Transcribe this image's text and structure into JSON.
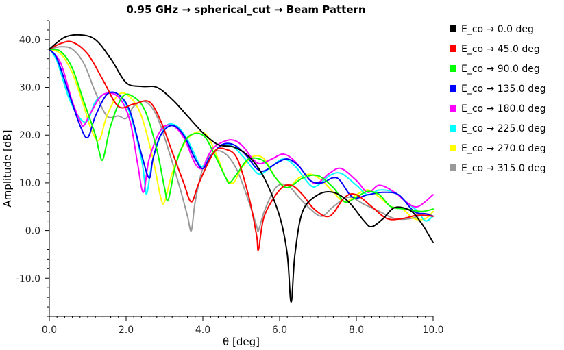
{
  "chart_data": {
    "type": "line",
    "title": "0.95 GHz → spherical_cut → Beam Pattern",
    "xlabel": "θ [deg]",
    "ylabel": "Amplitude [dB]",
    "xlim": [
      0,
      10
    ],
    "ylim": [
      -18,
      44
    ],
    "xticks": [
      "0.0",
      "2.0",
      "4.0",
      "6.0",
      "8.0",
      "10.0"
    ],
    "yticks": [
      "-10.0",
      "0.0",
      "10.0",
      "20.0",
      "30.0",
      "40.0"
    ],
    "legend_position": "right",
    "grid": false,
    "series": [
      {
        "name": "E_co → 0.0 deg",
        "color": "#000000",
        "x": [
          0,
          0.4,
          0.8,
          1.2,
          1.6,
          2.0,
          2.4,
          2.8,
          3.2,
          3.6,
          4.0,
          4.4,
          4.8,
          5.2,
          5.6,
          6.0,
          6.2,
          6.3,
          6.4,
          6.6,
          7.0,
          7.4,
          7.8,
          8.2,
          8.4,
          8.7,
          9.0,
          9.4,
          9.7,
          10.0
        ],
        "y": [
          38,
          40.5,
          41,
          40,
          36,
          31,
          30.2,
          30,
          27.5,
          24,
          20.5,
          18,
          17.5,
          15.5,
          11,
          3,
          -5,
          -15,
          -5,
          4,
          7.5,
          8,
          6,
          2,
          0.8,
          2.5,
          4.8,
          4.2,
          1.5,
          -2.5
        ]
      },
      {
        "name": "E_co → 45.0 deg",
        "color": "#ff0000",
        "x": [
          0,
          0.3,
          0.6,
          1.0,
          1.4,
          1.8,
          2.2,
          2.6,
          2.9,
          3.2,
          3.5,
          3.7,
          3.9,
          4.3,
          4.6,
          4.9,
          5.2,
          5.4,
          5.45,
          5.6,
          6.0,
          6.3,
          6.6,
          6.9,
          7.3,
          7.7,
          8.0,
          8.4,
          8.8,
          9.2,
          9.6,
          10.0
        ],
        "y": [
          38,
          39.2,
          39.5,
          37,
          31.5,
          26,
          26.5,
          27,
          23,
          16.5,
          10,
          6,
          10,
          16.5,
          17,
          15,
          7,
          -1,
          -4,
          3,
          8.5,
          9.5,
          7.5,
          4.5,
          3,
          7,
          7.5,
          5,
          2.5,
          2.5,
          3.2,
          3
        ]
      },
      {
        "name": "E_co → 90.0 deg",
        "color": "#00ff00",
        "x": [
          0,
          0.3,
          0.6,
          0.9,
          1.2,
          1.3,
          1.4,
          1.6,
          1.9,
          2.2,
          2.5,
          2.8,
          3.0,
          3.1,
          3.3,
          3.6,
          4.0,
          4.3,
          4.6,
          4.7,
          4.9,
          5.2,
          5.6,
          5.9,
          6.2,
          6.6,
          7.0,
          7.4,
          7.7,
          8.0,
          8.3,
          8.6,
          8.9,
          9.3,
          9.7,
          10.0
        ],
        "y": [
          38,
          37.5,
          34,
          27,
          20,
          16.5,
          15,
          22,
          28,
          28,
          25,
          17,
          9,
          6.5,
          14,
          19.5,
          20,
          16,
          11,
          10,
          12,
          15,
          14.5,
          11,
          9,
          11,
          11.5,
          9,
          6,
          7,
          8.2,
          7.5,
          5,
          4.5,
          4,
          4.5
        ]
      },
      {
        "name": "E_co → 135.0 deg",
        "color": "#0000ff",
        "x": [
          0,
          0.2,
          0.5,
          0.8,
          1.0,
          1.2,
          1.5,
          1.8,
          2.1,
          2.4,
          2.6,
          2.7,
          2.9,
          3.2,
          3.5,
          3.8,
          4.0,
          4.2,
          4.5,
          4.8,
          5.1,
          5.4,
          5.6,
          5.9,
          6.2,
          6.5,
          6.8,
          7.1,
          7.5,
          7.9,
          8.3,
          8.7,
          9.1,
          9.5,
          9.8,
          10.0
        ],
        "y": [
          38,
          36,
          29,
          22,
          19.5,
          24,
          28.5,
          28.5,
          25,
          16,
          11,
          15,
          20,
          22,
          20,
          15,
          13,
          15.5,
          18,
          18,
          16,
          13,
          12.5,
          14,
          15,
          13.5,
          10.5,
          10,
          11,
          7,
          7.5,
          8,
          7.5,
          4,
          3.5,
          3
        ]
      },
      {
        "name": "E_co → 180.0 deg",
        "color": "#ff00ff",
        "x": [
          0,
          0.3,
          0.6,
          0.8,
          0.9,
          1.1,
          1.4,
          1.8,
          2.1,
          2.3,
          2.45,
          2.6,
          2.9,
          3.2,
          3.5,
          3.8,
          4.0,
          4.1,
          4.3,
          4.7,
          5.0,
          5.3,
          5.5,
          5.8,
          6.1,
          6.4,
          6.8,
          7.0,
          7.3,
          7.6,
          8.0,
          8.3,
          8.6,
          9.0,
          9.3,
          9.6,
          10.0
        ],
        "y": [
          38,
          35,
          27,
          23,
          22,
          25,
          28.5,
          28,
          23,
          14,
          8,
          15,
          21,
          22,
          19.5,
          14,
          13,
          15,
          17.5,
          19,
          18,
          15,
          14,
          15,
          16,
          14.5,
          10.5,
          10,
          12,
          13,
          10.5,
          8,
          9.5,
          8,
          6,
          5,
          7.5
        ]
      },
      {
        "name": "E_co → 225.0 deg",
        "color": "#00ffff",
        "x": [
          0,
          0.2,
          0.5,
          0.8,
          1.0,
          1.2,
          1.5,
          1.8,
          2.1,
          2.4,
          2.5,
          2.55,
          2.7,
          3.0,
          3.3,
          3.6,
          3.9,
          4.0,
          4.2,
          4.5,
          4.8,
          5.1,
          5.3,
          5.5,
          5.8,
          6.1,
          6.4,
          6.8,
          7.0,
          7.3,
          7.6,
          8.0,
          8.3,
          8.6,
          9.0,
          9.3,
          9.6,
          9.8,
          10.0
        ],
        "y": [
          38,
          35.5,
          28,
          23.5,
          23,
          27,
          28.8,
          28.5,
          24.5,
          15,
          9,
          8,
          15,
          21.5,
          22,
          19,
          14,
          13.5,
          15.5,
          18,
          17.5,
          15,
          13,
          11.8,
          13.5,
          15,
          13.5,
          9.5,
          9.5,
          11.5,
          12,
          9.5,
          7.5,
          8.5,
          8,
          6,
          4,
          2,
          3
        ]
      },
      {
        "name": "E_co → 270.0 deg",
        "color": "#ffff00",
        "x": [
          0,
          0.3,
          0.6,
          0.9,
          1.1,
          1.3,
          1.5,
          1.8,
          2.1,
          2.4,
          2.7,
          2.9,
          3.0,
          3.2,
          3.5,
          3.8,
          4.1,
          4.4,
          4.6,
          4.8,
          5.0,
          5.3,
          5.6,
          5.9,
          6.2,
          6.5,
          6.8,
          7.1,
          7.4,
          7.7,
          8.0,
          8.3,
          8.6,
          8.9,
          9.2,
          9.5,
          9.8,
          10.0
        ],
        "y": [
          38,
          37,
          33,
          26,
          21,
          19,
          24,
          28.5,
          28,
          24,
          15,
          7,
          6,
          12,
          18,
          20.5,
          20,
          15,
          11,
          10,
          13,
          15.5,
          15,
          11,
          9,
          11,
          11.8,
          10.5,
          8,
          6,
          7.5,
          8.5,
          7,
          5,
          4.5,
          2.5,
          2.5,
          4
        ]
      },
      {
        "name": "E_co → 315.0 deg",
        "color": "#999999",
        "x": [
          0,
          0.3,
          0.6,
          0.9,
          1.2,
          1.5,
          1.8,
          2.0,
          2.2,
          2.5,
          2.8,
          3.1,
          3.4,
          3.6,
          3.7,
          3.8,
          4.0,
          4.3,
          4.6,
          4.9,
          5.2,
          5.4,
          5.45,
          5.6,
          5.9,
          6.2,
          6.5,
          6.8,
          7.1,
          7.4,
          7.8,
          8.2,
          8.6,
          9.0,
          9.4,
          9.8,
          10.0
        ],
        "y": [
          38,
          38.5,
          38,
          35,
          29,
          24,
          24,
          23.5,
          26,
          27,
          24,
          17,
          9,
          3,
          0,
          6,
          13,
          16.5,
          16,
          12.5,
          6,
          1,
          0,
          4,
          9,
          9.5,
          7,
          4.5,
          3,
          5,
          7,
          5.5,
          4,
          2.5,
          2.5,
          3.5,
          3
        ]
      }
    ]
  }
}
